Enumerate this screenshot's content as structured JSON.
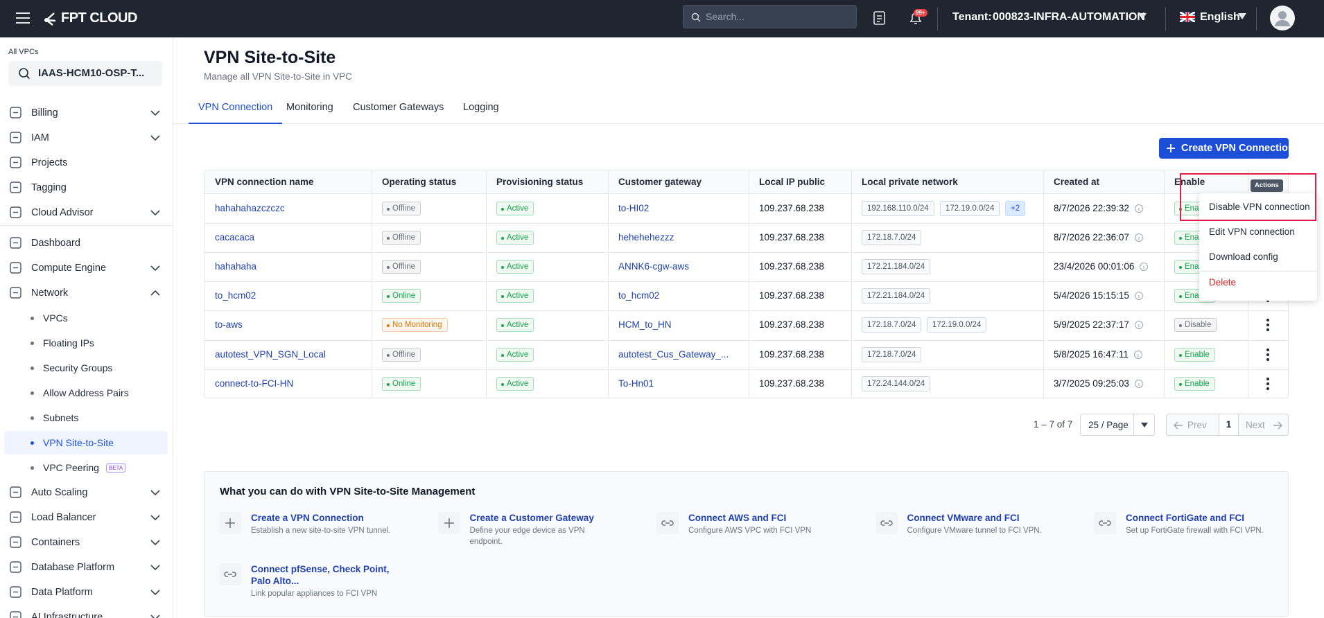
{
  "header": {
    "logo": "FPT CLOUD",
    "search_placeholder": "Search...",
    "notification_badge": "99+",
    "tenant_label": "Tenant:",
    "tenant": "000823-INFRA-AUTOMATION",
    "language": "English"
  },
  "sidebar": {
    "scope_label": "All VPCs",
    "vpc": "IAAS-HCM10-OSP-T...",
    "items": [
      {
        "label": "Billing",
        "expandable": true
      },
      {
        "label": "IAM",
        "expandable": true
      },
      {
        "label": "Projects"
      },
      {
        "label": "Tagging"
      },
      {
        "label": "Cloud Advisor",
        "expandable": true
      },
      {
        "label": "Dashboard"
      },
      {
        "label": "Compute Engine",
        "expandable": true
      },
      {
        "label": "Network",
        "expandable": true,
        "expanded": true
      },
      {
        "label": "VPCs",
        "sub": true
      },
      {
        "label": "Floating IPs",
        "sub": true
      },
      {
        "label": "Security Groups",
        "sub": true
      },
      {
        "label": "Allow Address Pairs",
        "sub": true
      },
      {
        "label": "Subnets",
        "sub": true
      },
      {
        "label": "VPN Site-to-Site",
        "sub": true,
        "selected": true
      },
      {
        "label": "VPC Peering",
        "sub": true,
        "badge": "BETA"
      },
      {
        "label": "Auto Scaling",
        "expandable": true
      },
      {
        "label": "Load Balancer",
        "expandable": true
      },
      {
        "label": "Containers",
        "expandable": true
      },
      {
        "label": "Database Platform",
        "expandable": true
      },
      {
        "label": "Data Platform",
        "expandable": true
      },
      {
        "label": "AI Infrastructure",
        "expandable": true
      }
    ]
  },
  "page": {
    "title": "VPN Site-to-Site",
    "subtitle": "Manage all VPN Site-to-Site in VPC",
    "tabs": [
      "VPN Connection",
      "Monitoring",
      "Customer Gateways",
      "Logging"
    ],
    "active_tab": 0,
    "create_button": "Create VPN Connection"
  },
  "table": {
    "columns": [
      "VPN connection name",
      "Operating status",
      "Provisioning status",
      "Customer gateway",
      "Local IP public",
      "Local private network",
      "Created at",
      "Enable"
    ],
    "rows": [
      {
        "name": "hahahahazczczc",
        "operating": {
          "text": "Offline",
          "color": "#6b7280"
        },
        "provisioning": {
          "text": "Active",
          "color": "#16a34a"
        },
        "gateway": "to-HI02",
        "ip": "109.237.68.238",
        "networks": [
          "192.168.110.0/24",
          "172.19.0.0/24"
        ],
        "more": "+2",
        "created": "8/7/2026 22:39:32",
        "enable": {
          "text": "Enable",
          "color": "#16a34a"
        }
      },
      {
        "name": "cacacaca",
        "operating": {
          "text": "Offline",
          "color": "#6b7280"
        },
        "provisioning": {
          "text": "Active",
          "color": "#16a34a"
        },
        "gateway": "hehehehezzz",
        "ip": "109.237.68.238",
        "networks": [
          "172.18.7.0/24"
        ],
        "created": "8/7/2026 22:36:07",
        "enable": {
          "text": "Enable",
          "color": "#16a34a"
        }
      },
      {
        "name": "hahahaha",
        "operating": {
          "text": "Offline",
          "color": "#6b7280"
        },
        "provisioning": {
          "text": "Active",
          "color": "#16a34a"
        },
        "gateway": "ANNK6-cgw-aws",
        "ip": "109.237.68.238",
        "networks": [
          "172.21.184.0/24"
        ],
        "created": "23/4/2026 00:01:06",
        "enable": {
          "text": "Enable",
          "color": "#16a34a"
        }
      },
      {
        "name": "to_hcm02",
        "operating": {
          "text": "Online",
          "color": "#16a34a"
        },
        "provisioning": {
          "text": "Active",
          "color": "#16a34a"
        },
        "gateway": "to_hcm02",
        "ip": "109.237.68.238",
        "networks": [
          "172.21.184.0/24"
        ],
        "created": "5/4/2026 15:15:15",
        "enable": {
          "text": "Enable",
          "color": "#16a34a"
        }
      },
      {
        "name": "to-aws",
        "operating": {
          "text": "No Monitoring",
          "color": "#d97706"
        },
        "provisioning": {
          "text": "Active",
          "color": "#16a34a"
        },
        "gateway": "HCM_to_HN",
        "ip": "109.237.68.238",
        "networks": [
          "172.18.7.0/24",
          "172.19.0.0/24"
        ],
        "created": "5/9/2025 22:37:17",
        "enable": {
          "text": "Disable",
          "color": "#6b7280"
        }
      },
      {
        "name": "autotest_VPN_SGN_Local",
        "operating": {
          "text": "Offline",
          "color": "#6b7280"
        },
        "provisioning": {
          "text": "Active",
          "color": "#16a34a"
        },
        "gateway": "autotest_Cus_Gateway_...",
        "ip": "109.237.68.238",
        "networks": [
          "172.18.7.0/24"
        ],
        "created": "5/8/2025 16:47:11",
        "enable": {
          "text": "Enable",
          "color": "#16a34a"
        }
      },
      {
        "name": "connect-to-FCI-HN",
        "operating": {
          "text": "Online",
          "color": "#16a34a"
        },
        "provisioning": {
          "text": "Active",
          "color": "#16a34a"
        },
        "gateway": "To-Hn01",
        "ip": "109.237.68.238",
        "networks": [
          "172.24.144.0/24"
        ],
        "created": "3/7/2025 09:25:03",
        "enable": {
          "text": "Enable",
          "color": "#16a34a"
        }
      }
    ]
  },
  "pagination": {
    "summary": "1 – 7 of 7",
    "page_size": "25 / Page",
    "prev": "Prev",
    "page": "1",
    "next": "Next"
  },
  "tips": {
    "title": "What you can do with VPN Site-to-Site Management",
    "items": [
      {
        "icon": "plus",
        "title": "Create a VPN Connection",
        "desc": "Establish a new site-to-site VPN tunnel."
      },
      {
        "icon": "plus",
        "title": "Create a Customer Gateway",
        "desc": "Define your edge device as VPN endpoint."
      },
      {
        "icon": "link",
        "title": "Connect AWS and FCI",
        "desc": "Configure AWS VPC with FCI VPN"
      },
      {
        "icon": "link",
        "title": "Connect VMware and FCI",
        "desc": "Configure VMware tunnel to FCI VPN."
      },
      {
        "icon": "link",
        "title": "Connect FortiGate and FCI",
        "desc": "Set up FortiGate firewall with FCI VPN."
      },
      {
        "icon": "link",
        "title": "Connect pfSense, Check Point, Palo Alto...",
        "desc": "Link popular appliances to FCI VPN"
      }
    ]
  },
  "menu": {
    "tooltip": "Actions",
    "items": [
      {
        "label": "Disable VPN connection",
        "highlighted": true
      },
      {
        "label": "Edit VPN connection"
      },
      {
        "label": "Download config"
      },
      {
        "label": "Delete",
        "danger": true
      }
    ]
  }
}
